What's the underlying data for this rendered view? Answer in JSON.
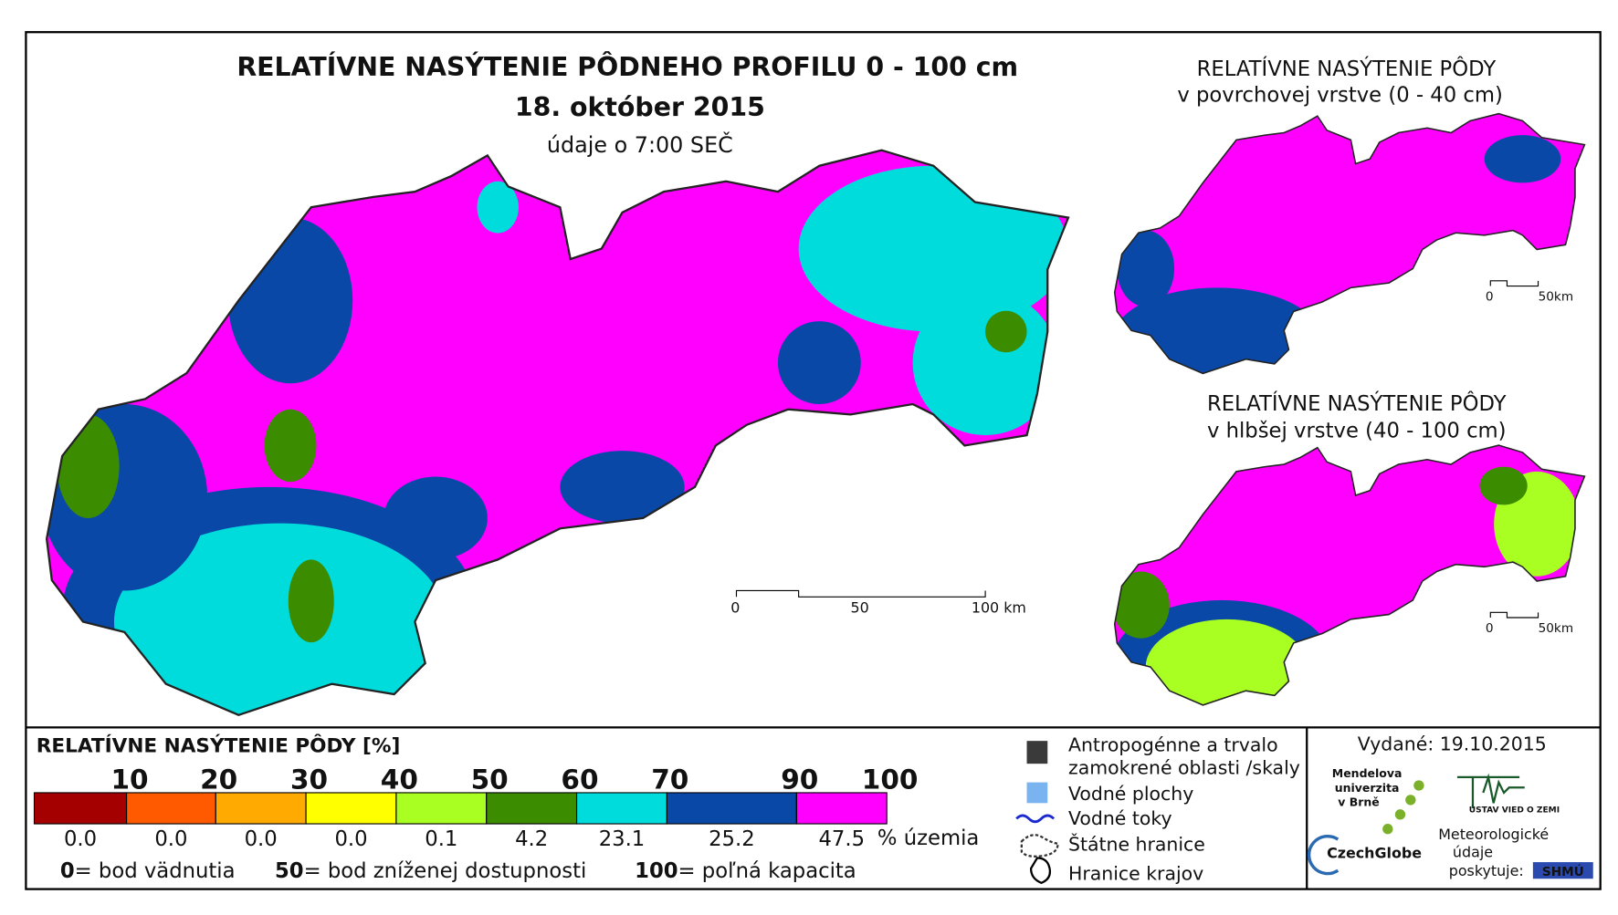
{
  "title": "RELATÍVNE NASÝTENIE PÔDNEHO PROFILU 0 - 100 cm",
  "date": "18. október 2015",
  "time_note": "údaje o 7:00 SEČ",
  "scale_bar": [
    "0",
    "50",
    "100 km"
  ],
  "inset_top": {
    "title": "RELATÍVNE NASÝTENIE PÔDY",
    "subtitle": "v povrchovej vrstve (0 - 40 cm)",
    "scale_bar": [
      "0",
      "50km"
    ]
  },
  "inset_bottom": {
    "title": "RELATÍVNE NASÝTENIE PÔDY",
    "subtitle": "v hlbšej vrstve (40 - 100 cm)",
    "scale_bar": [
      "0",
      "50km"
    ]
  },
  "legend": {
    "title": "RELATÍVNE NASÝTENIE PÔDY [%]",
    "breaks": [
      10,
      20,
      30,
      40,
      50,
      60,
      70,
      90,
      100
    ],
    "colors": [
      "#a50000",
      "#ff5a00",
      "#ffaa00",
      "#ffff00",
      "#aaff22",
      "#3c8c00",
      "#00dcdc",
      "#0a48a8",
      "#ff00ff"
    ],
    "shares": [
      "0.0",
      "0.0",
      "0.0",
      "0.0",
      "0.1",
      "4.2",
      "23.1",
      "25.2",
      "47.5"
    ],
    "unit": "% územia",
    "notes": [
      {
        "value": "0",
        "text": "= bod vädnutia"
      },
      {
        "value": "50",
        "text": "= bod zníženej dostupnosti"
      },
      {
        "value": "100",
        "text": "= poľná kapacita"
      }
    ]
  },
  "symbols": {
    "anthropogenic": [
      "Antropogénne a trvalo",
      "zamokrené oblasti /skaly"
    ],
    "water_bodies": "Vodné plochy",
    "streams": "Vodné toky",
    "state_border": "Štátne hranice",
    "region_border": "Hranice krajov"
  },
  "issued": "Vydané: 19.10.2015",
  "logos": {
    "mendel": [
      "Mendelova",
      "univerzita",
      "v Brně"
    ],
    "czechglobe": "CzechGlobe",
    "uvz": "ÚSTAV VIED O ZEMI",
    "provider": [
      "Meteorologické",
      "údaje",
      "poskytuje:"
    ],
    "shmu": "SHMÚ"
  }
}
